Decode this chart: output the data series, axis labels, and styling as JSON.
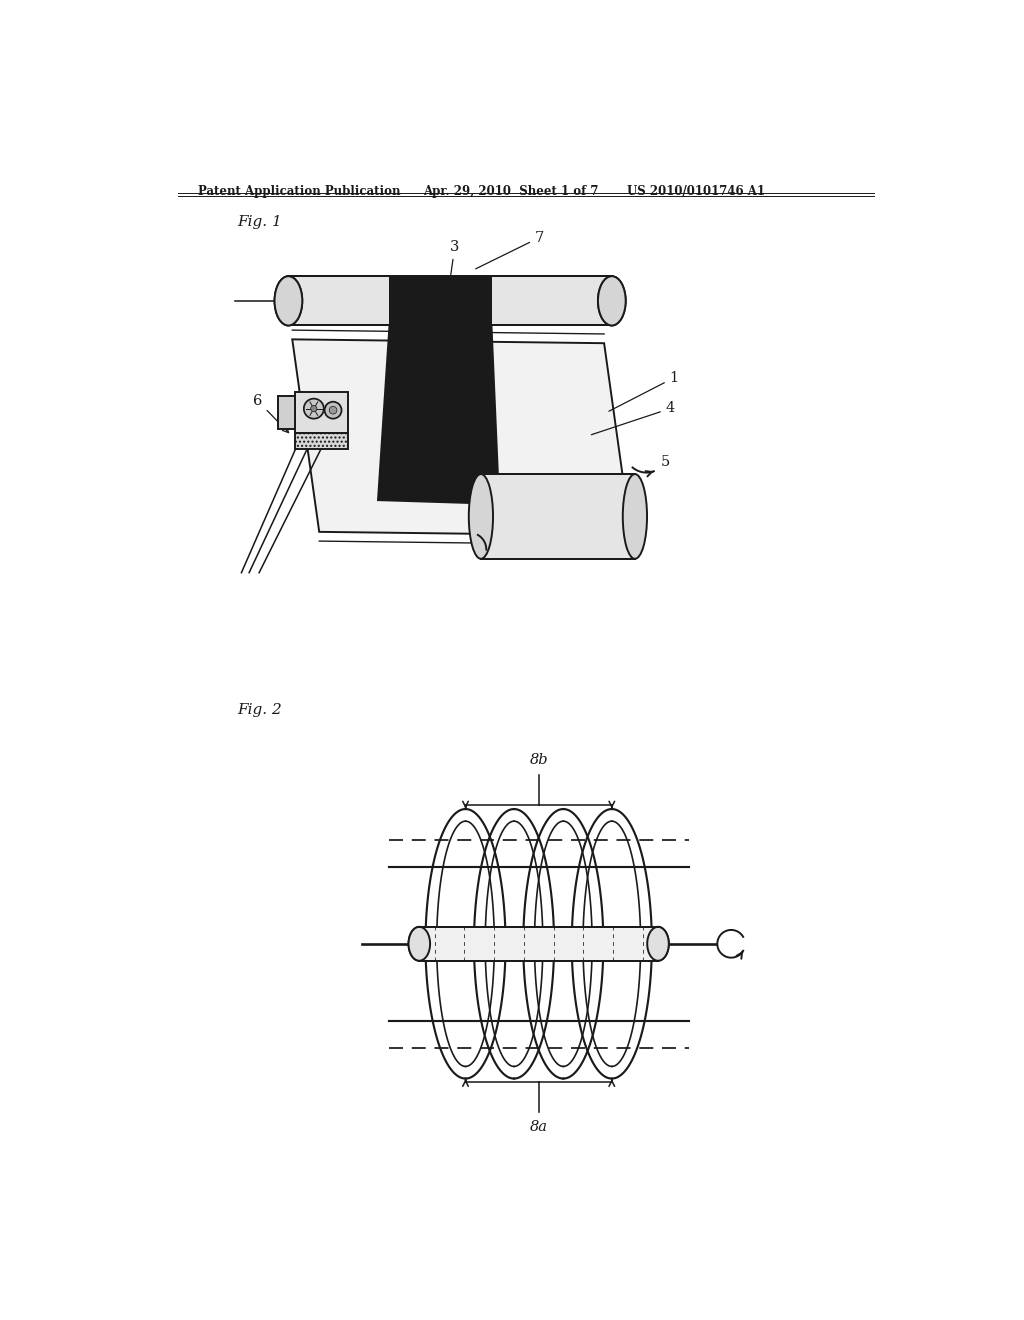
{
  "bg_color": "#ffffff",
  "header_text": "Patent Application Publication",
  "header_date": "Apr. 29, 2010  Sheet 1 of 7",
  "header_patent": "US 2010/0101746 A1",
  "fig1_label": "Fig. 1",
  "fig2_label": "Fig. 2",
  "line_color": "#1a1a1a",
  "line_width": 1.4
}
